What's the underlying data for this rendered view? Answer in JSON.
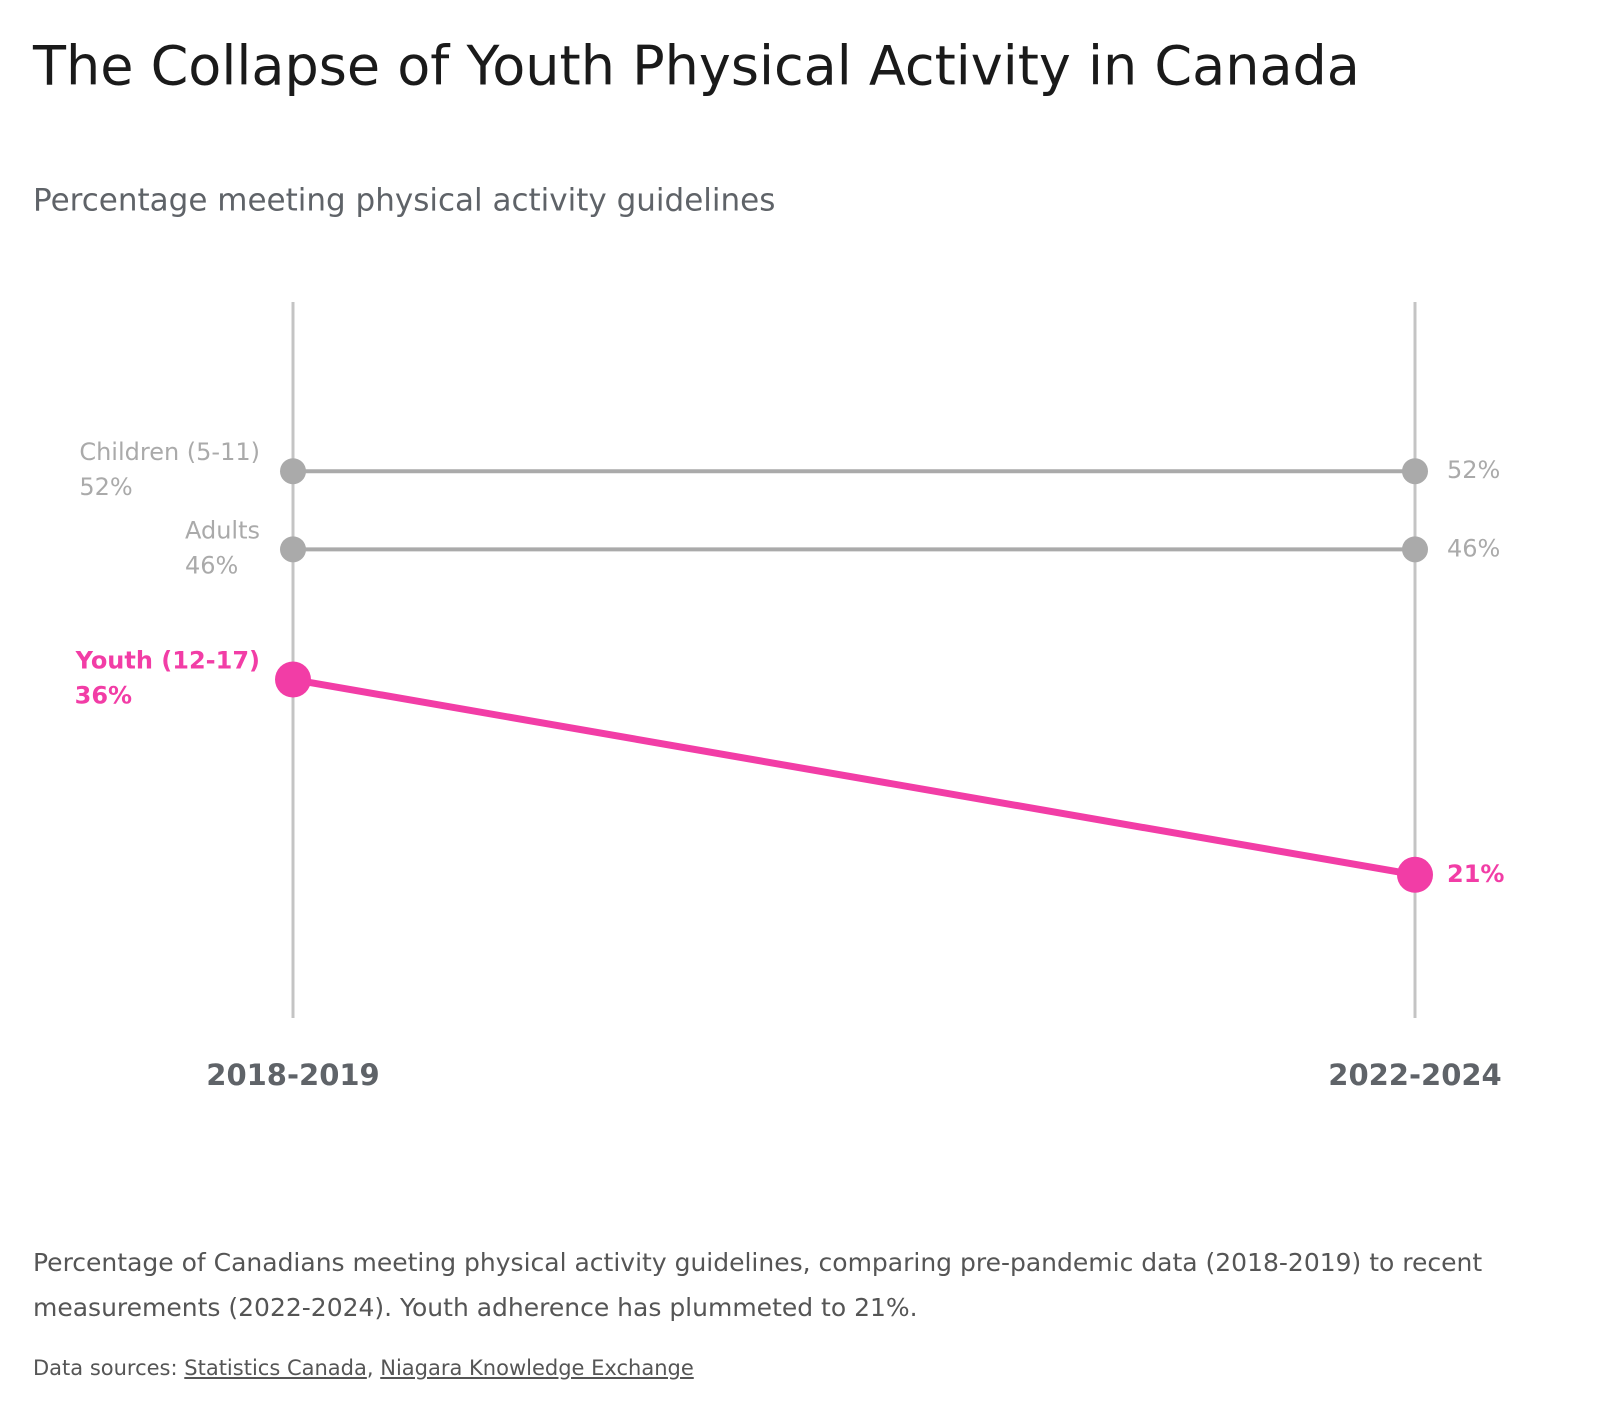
{
  "chart_data": {
    "type": "slope",
    "title": "The Collapse of Youth Physical Activity in Canada",
    "subtitle": "Percentage meeting physical activity guidelines",
    "categories": [
      "2018-2019",
      "2022-2024"
    ],
    "series": [
      {
        "name": "Children (5-11)",
        "color": "#aaaaaa",
        "values": [
          52,
          52
        ],
        "value_labels": [
          "52%",
          "52%"
        ]
      },
      {
        "name": "Adults",
        "color": "#aaaaaa",
        "values": [
          46,
          46
        ],
        "value_labels": [
          "46%",
          "46%"
        ]
      },
      {
        "name": "Youth (12-17)",
        "color": "#f23da6",
        "values": [
          36,
          21
        ],
        "value_labels": [
          "36%",
          "21%"
        ],
        "highlight": true
      }
    ],
    "ylim": [
      10,
      65
    ],
    "caption": "Percentage of Canadians meeting physical activity guidelines, comparing pre-pandemic data (2018-2019) to recent measurements (2022-2024). Youth adherence has plummeted to 21%.",
    "sources_label": "Data sources:",
    "sources": [
      "Statistics Canada",
      "Niagara Knowledge Exchange"
    ],
    "source_separator": ","
  }
}
